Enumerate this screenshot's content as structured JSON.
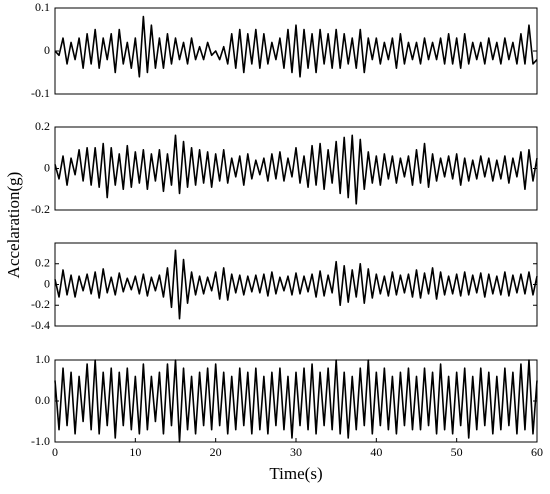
{
  "chart_data": [
    {
      "type": "line",
      "ylabel": "Accelaration(g)",
      "color": "#000000",
      "xlim": [
        0,
        60
      ],
      "ylim": [
        -0.1,
        0.1
      ],
      "yticks": [
        -0.1,
        0,
        0.1
      ],
      "grid": false,
      "x": [
        0,
        0.5,
        1,
        1.5,
        2,
        2.5,
        3,
        3.5,
        4,
        4.5,
        5,
        5.5,
        6,
        6.5,
        7,
        7.5,
        8,
        8.5,
        9,
        9.5,
        10,
        10.5,
        11,
        11.5,
        12,
        12.5,
        13,
        13.5,
        14,
        14.5,
        15,
        15.5,
        16,
        16.5,
        17,
        17.5,
        18,
        18.5,
        19,
        19.5,
        20,
        20.5,
        21,
        21.5,
        22,
        22.5,
        23,
        23.5,
        24,
        24.5,
        25,
        25.5,
        26,
        26.5,
        27,
        27.5,
        28,
        28.5,
        29,
        29.5,
        30,
        30.5,
        31,
        31.5,
        32,
        32.5,
        33,
        33.5,
        34,
        34.5,
        35,
        35.5,
        36,
        36.5,
        37,
        37.5,
        38,
        38.5,
        39,
        39.5,
        40,
        40.5,
        41,
        41.5,
        42,
        42.5,
        43,
        43.5,
        44,
        44.5,
        45,
        45.5,
        46,
        46.5,
        47,
        47.5,
        48,
        48.5,
        49,
        49.5,
        50,
        50.5,
        51,
        51.5,
        52,
        52.5,
        53,
        53.5,
        54,
        54.5,
        55,
        55.5,
        56,
        56.5,
        57,
        57.5,
        58,
        58.5,
        59,
        59.5,
        60
      ],
      "values": [
        0.0,
        -0.01,
        0.03,
        -0.03,
        0.02,
        -0.02,
        0.03,
        -0.04,
        0.04,
        -0.03,
        0.05,
        -0.04,
        0.03,
        -0.02,
        0.04,
        -0.05,
        0.05,
        -0.03,
        0.02,
        -0.04,
        0.03,
        -0.06,
        0.08,
        -0.05,
        0.06,
        -0.04,
        0.03,
        -0.04,
        0.04,
        -0.03,
        0.03,
        -0.02,
        0.02,
        -0.03,
        0.03,
        -0.02,
        0.01,
        -0.02,
        0.02,
        -0.01,
        0.0,
        -0.02,
        0.01,
        -0.03,
        0.04,
        -0.04,
        0.05,
        -0.05,
        0.04,
        -0.03,
        0.05,
        -0.04,
        0.04,
        -0.03,
        0.02,
        -0.02,
        0.03,
        -0.04,
        0.05,
        -0.05,
        0.06,
        -0.06,
        0.05,
        -0.04,
        0.04,
        -0.05,
        0.05,
        -0.03,
        0.04,
        -0.04,
        0.05,
        -0.04,
        0.04,
        -0.03,
        0.03,
        -0.04,
        0.05,
        -0.05,
        0.03,
        -0.02,
        0.03,
        -0.03,
        0.02,
        -0.02,
        0.03,
        -0.04,
        0.04,
        -0.03,
        0.02,
        -0.02,
        0.02,
        -0.03,
        0.03,
        -0.02,
        0.02,
        -0.02,
        0.03,
        -0.03,
        0.04,
        -0.03,
        0.03,
        -0.04,
        0.04,
        -0.03,
        0.02,
        -0.02,
        0.02,
        -0.03,
        0.03,
        -0.02,
        0.02,
        -0.03,
        0.03,
        -0.02,
        0.02,
        -0.03,
        0.04,
        -0.03,
        0.06,
        -0.03,
        -0.02
      ]
    },
    {
      "type": "line",
      "color": "#000000",
      "xlim": [
        0,
        60
      ],
      "ylim": [
        -0.2,
        0.2
      ],
      "yticks": [
        -0.2,
        0,
        0.2
      ],
      "grid": false,
      "x": [
        0,
        0.5,
        1,
        1.5,
        2,
        2.5,
        3,
        3.5,
        4,
        4.5,
        5,
        5.5,
        6,
        6.5,
        7,
        7.5,
        8,
        8.5,
        9,
        9.5,
        10,
        10.5,
        11,
        11.5,
        12,
        12.5,
        13,
        13.5,
        14,
        14.5,
        15,
        15.5,
        16,
        16.5,
        17,
        17.5,
        18,
        18.5,
        19,
        19.5,
        20,
        20.5,
        21,
        21.5,
        22,
        22.5,
        23,
        23.5,
        24,
        24.5,
        25,
        25.5,
        26,
        26.5,
        27,
        27.5,
        28,
        28.5,
        29,
        29.5,
        30,
        30.5,
        31,
        31.5,
        32,
        32.5,
        33,
        33.5,
        34,
        34.5,
        35,
        35.5,
        36,
        36.5,
        37,
        37.5,
        38,
        38.5,
        39,
        39.5,
        40,
        40.5,
        41,
        41.5,
        42,
        42.5,
        43,
        43.5,
        44,
        44.5,
        45,
        45.5,
        46,
        46.5,
        47,
        47.5,
        48,
        48.5,
        49,
        49.5,
        50,
        50.5,
        51,
        51.5,
        52,
        52.5,
        53,
        53.5,
        54,
        54.5,
        55,
        55.5,
        56,
        56.5,
        57,
        57.5,
        58,
        58.5,
        59,
        59.5,
        60
      ],
      "values": [
        0.02,
        -0.05,
        0.06,
        -0.08,
        0.05,
        -0.03,
        0.09,
        -0.06,
        0.1,
        -0.08,
        0.1,
        -0.09,
        0.12,
        -0.14,
        0.1,
        -0.08,
        0.07,
        -0.1,
        0.11,
        -0.09,
        0.08,
        -0.07,
        0.09,
        -0.1,
        0.07,
        -0.06,
        0.09,
        -0.11,
        0.07,
        -0.08,
        0.16,
        -0.12,
        0.13,
        -0.09,
        0.1,
        -0.08,
        0.09,
        -0.07,
        0.08,
        -0.09,
        0.07,
        -0.06,
        0.09,
        -0.07,
        0.05,
        -0.04,
        0.06,
        -0.08,
        0.07,
        -0.05,
        0.04,
        -0.03,
        0.05,
        -0.06,
        0.07,
        -0.05,
        0.08,
        -0.06,
        0.05,
        -0.04,
        0.1,
        -0.07,
        0.06,
        -0.09,
        0.11,
        -0.08,
        0.12,
        -0.1,
        0.09,
        -0.07,
        0.13,
        -0.12,
        0.15,
        -0.14,
        0.16,
        -0.17,
        0.14,
        -0.1,
        0.08,
        -0.07,
        0.06,
        -0.08,
        0.07,
        -0.05,
        0.06,
        -0.07,
        0.05,
        -0.04,
        0.06,
        -0.08,
        0.09,
        -0.07,
        0.12,
        -0.09,
        0.07,
        -0.06,
        0.05,
        -0.04,
        0.06,
        -0.05,
        0.07,
        -0.08,
        0.05,
        -0.06,
        0.04,
        -0.05,
        0.06,
        -0.04,
        0.05,
        -0.06,
        0.04,
        -0.05,
        0.06,
        -0.07,
        0.05,
        -0.04,
        0.08,
        -0.1,
        0.09,
        -0.06,
        0.05
      ]
    },
    {
      "type": "line",
      "color": "#000000",
      "xlim": [
        0,
        60
      ],
      "ylim": [
        -0.4,
        0.4
      ],
      "yticks": [
        -0.4,
        -0.2,
        0,
        0.2
      ],
      "grid": false,
      "x": [
        0,
        0.5,
        1,
        1.5,
        2,
        2.5,
        3,
        3.5,
        4,
        4.5,
        5,
        5.5,
        6,
        6.5,
        7,
        7.5,
        8,
        8.5,
        9,
        9.5,
        10,
        10.5,
        11,
        11.5,
        12,
        12.5,
        13,
        13.5,
        14,
        14.5,
        15,
        15.5,
        16,
        16.5,
        17,
        17.5,
        18,
        18.5,
        19,
        19.5,
        20,
        20.5,
        21,
        21.5,
        22,
        22.5,
        23,
        23.5,
        24,
        24.5,
        25,
        25.5,
        26,
        26.5,
        27,
        27.5,
        28,
        28.5,
        29,
        29.5,
        30,
        30.5,
        31,
        31.5,
        32,
        32.5,
        33,
        33.5,
        34,
        34.5,
        35,
        35.5,
        36,
        36.5,
        37,
        37.5,
        38,
        38.5,
        39,
        39.5,
        40,
        40.5,
        41,
        41.5,
        42,
        42.5,
        43,
        43.5,
        44,
        44.5,
        45,
        45.5,
        46,
        46.5,
        47,
        47.5,
        48,
        48.5,
        49,
        49.5,
        50,
        50.5,
        51,
        51.5,
        52,
        52.5,
        53,
        53.5,
        54,
        54.5,
        55,
        55.5,
        56,
        56.5,
        57,
        57.5,
        58,
        58.5,
        59,
        59.5,
        60
      ],
      "values": [
        0.05,
        -0.12,
        0.14,
        -0.1,
        0.09,
        -0.12,
        0.08,
        -0.06,
        0.1,
        -0.09,
        0.12,
        -0.13,
        0.15,
        -0.08,
        0.07,
        -0.1,
        0.11,
        -0.07,
        0.06,
        -0.05,
        0.08,
        -0.09,
        0.1,
        -0.11,
        0.07,
        -0.06,
        0.09,
        -0.12,
        0.16,
        -0.22,
        0.33,
        -0.33,
        0.24,
        -0.18,
        0.12,
        -0.1,
        0.08,
        -0.09,
        0.07,
        -0.06,
        0.12,
        -0.14,
        0.16,
        -0.15,
        0.1,
        -0.08,
        0.09,
        -0.1,
        0.08,
        -0.07,
        0.09,
        -0.08,
        0.1,
        -0.11,
        0.12,
        -0.09,
        0.07,
        -0.06,
        0.08,
        -0.1,
        0.11,
        -0.09,
        0.08,
        -0.07,
        0.1,
        -0.12,
        0.13,
        -0.11,
        0.09,
        -0.08,
        0.22,
        -0.2,
        0.18,
        -0.17,
        0.14,
        -0.12,
        0.2,
        -0.18,
        0.15,
        -0.13,
        0.1,
        -0.09,
        0.08,
        -0.11,
        0.12,
        -0.1,
        0.09,
        -0.08,
        0.1,
        -0.12,
        0.14,
        -0.13,
        0.11,
        -0.09,
        0.16,
        -0.14,
        0.12,
        -0.1,
        0.08,
        -0.09,
        0.1,
        -0.11,
        0.12,
        -0.1,
        0.09,
        -0.08,
        0.11,
        -0.12,
        0.1,
        -0.09,
        0.08,
        -0.1,
        0.12,
        -0.11,
        0.09,
        -0.08,
        0.1,
        -0.09,
        0.12,
        -0.1,
        0.08
      ]
    },
    {
      "type": "line",
      "xlabel": "Time(s)",
      "color": "#000000",
      "xlim": [
        0,
        60
      ],
      "xticks": [
        0,
        10,
        20,
        30,
        40,
        50,
        60
      ],
      "ylim": [
        -1.0,
        1.0
      ],
      "yticks": [
        {
          "value": -1.0,
          "label": "-1.0"
        },
        {
          "value": 0,
          "label": "0.0"
        },
        {
          "value": 1.0,
          "label": "1.0"
        }
      ],
      "grid": false,
      "x": [
        0,
        0.5,
        1,
        1.5,
        2,
        2.5,
        3,
        3.5,
        4,
        4.5,
        5,
        5.5,
        6,
        6.5,
        7,
        7.5,
        8,
        8.5,
        9,
        9.5,
        10,
        10.5,
        11,
        11.5,
        12,
        12.5,
        13,
        13.5,
        14,
        14.5,
        15,
        15.5,
        16,
        16.5,
        17,
        17.5,
        18,
        18.5,
        19,
        19.5,
        20,
        20.5,
        21,
        21.5,
        22,
        22.5,
        23,
        23.5,
        24,
        24.5,
        25,
        25.5,
        26,
        26.5,
        27,
        27.5,
        28,
        28.5,
        29,
        29.5,
        30,
        30.5,
        31,
        31.5,
        32,
        32.5,
        33,
        33.5,
        34,
        34.5,
        35,
        35.5,
        36,
        36.5,
        37,
        37.5,
        38,
        38.5,
        39,
        39.5,
        40,
        40.5,
        41,
        41.5,
        42,
        42.5,
        43,
        43.5,
        44,
        44.5,
        45,
        45.5,
        46,
        46.5,
        47,
        47.5,
        48,
        48.5,
        49,
        49.5,
        50,
        50.5,
        51,
        51.5,
        52,
        52.5,
        53,
        53.5,
        54,
        54.5,
        55,
        55.5,
        56,
        56.5,
        57,
        57.5,
        58,
        58.5,
        59,
        59.5,
        60
      ],
      "values": [
        0.5,
        -0.7,
        0.8,
        -0.6,
        0.7,
        -0.8,
        0.6,
        -0.5,
        0.9,
        -0.7,
        1.0,
        -0.8,
        0.7,
        -0.6,
        0.8,
        -0.9,
        0.7,
        -0.6,
        0.8,
        -0.7,
        0.6,
        -0.8,
        0.9,
        -0.7,
        0.6,
        -0.5,
        0.7,
        -0.8,
        0.9,
        -0.6,
        1.0,
        -1.0,
        0.8,
        -0.7,
        0.6,
        -0.8,
        0.7,
        -0.6,
        0.8,
        -0.7,
        0.9,
        -0.6,
        0.7,
        -0.8,
        0.6,
        -0.7,
        0.8,
        -0.6,
        0.7,
        -0.8,
        0.8,
        -0.7,
        0.6,
        -0.8,
        0.7,
        -0.6,
        0.8,
        -0.7,
        0.6,
        -0.9,
        0.7,
        -0.6,
        0.8,
        -0.7,
        0.9,
        -0.8,
        0.7,
        -0.6,
        0.8,
        -0.7,
        1.0,
        -0.8,
        0.7,
        -0.9,
        0.6,
        -0.7,
        0.8,
        -0.6,
        1.0,
        -0.8,
        0.7,
        -0.6,
        0.8,
        -0.7,
        0.6,
        -0.8,
        0.7,
        -0.6,
        0.8,
        -0.7,
        0.6,
        -0.7,
        0.8,
        -0.6,
        0.7,
        -0.8,
        0.9,
        -0.7,
        0.6,
        -0.8,
        0.7,
        -0.6,
        0.8,
        -0.9,
        0.6,
        -0.7,
        0.8,
        -0.6,
        0.7,
        -0.8,
        0.6,
        -0.7,
        0.8,
        -0.6,
        0.7,
        -0.8,
        0.9,
        -0.7,
        1.0,
        -0.8,
        0.5
      ]
    }
  ]
}
